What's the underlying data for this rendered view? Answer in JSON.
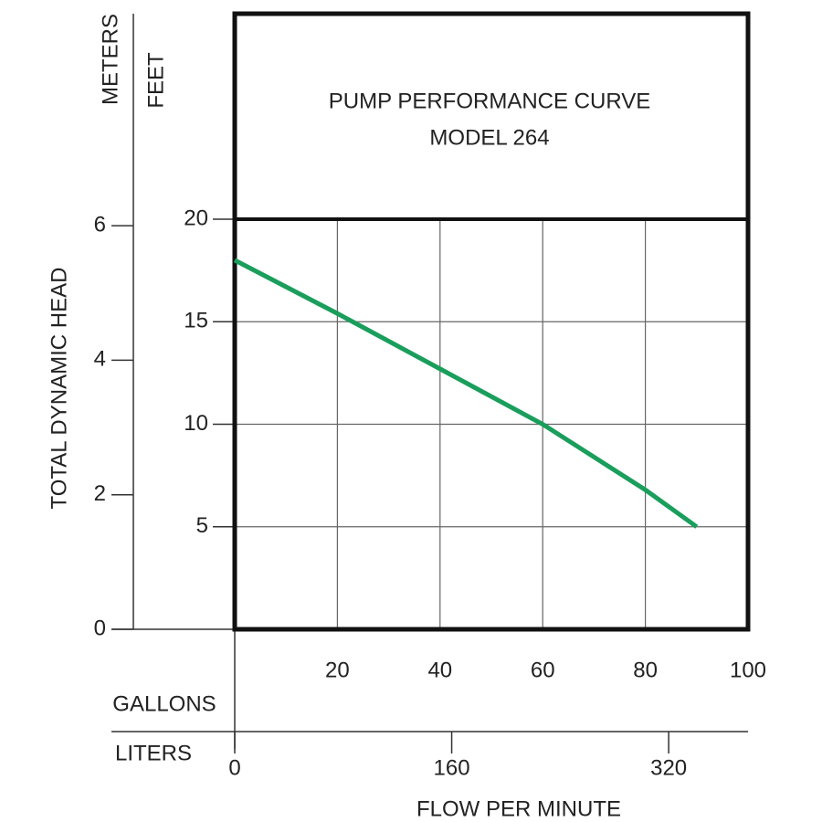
{
  "chart_data": {
    "type": "line",
    "title": "PUMP PERFORMANCE CURVE",
    "subtitle": "MODEL 264",
    "y_label": "TOTAL DYNAMIC HEAD",
    "y_unit": "FEET",
    "y2_unit": "METERS",
    "x_unit": "GALLONS",
    "x2_unit": "LITERS",
    "x_label": "FLOW PER MINUTE",
    "x": [
      0,
      20,
      40,
      60,
      80,
      90
    ],
    "values": [
      18,
      15.4,
      12.7,
      10,
      6.8,
      5
    ],
    "color": "#1a9e5c",
    "xlim": [
      0,
      100
    ],
    "xticks": [
      20,
      40,
      60,
      80,
      100
    ],
    "ylim": [
      0,
      20
    ],
    "yticks": [
      5,
      10,
      15,
      20
    ],
    "y2lim": [
      0,
      6.096
    ],
    "y2ticks": [
      0,
      2,
      4,
      6
    ],
    "x2lim": [
      0,
      378.5
    ],
    "x2ticks": [
      0,
      160,
      320
    ],
    "grid": true
  }
}
